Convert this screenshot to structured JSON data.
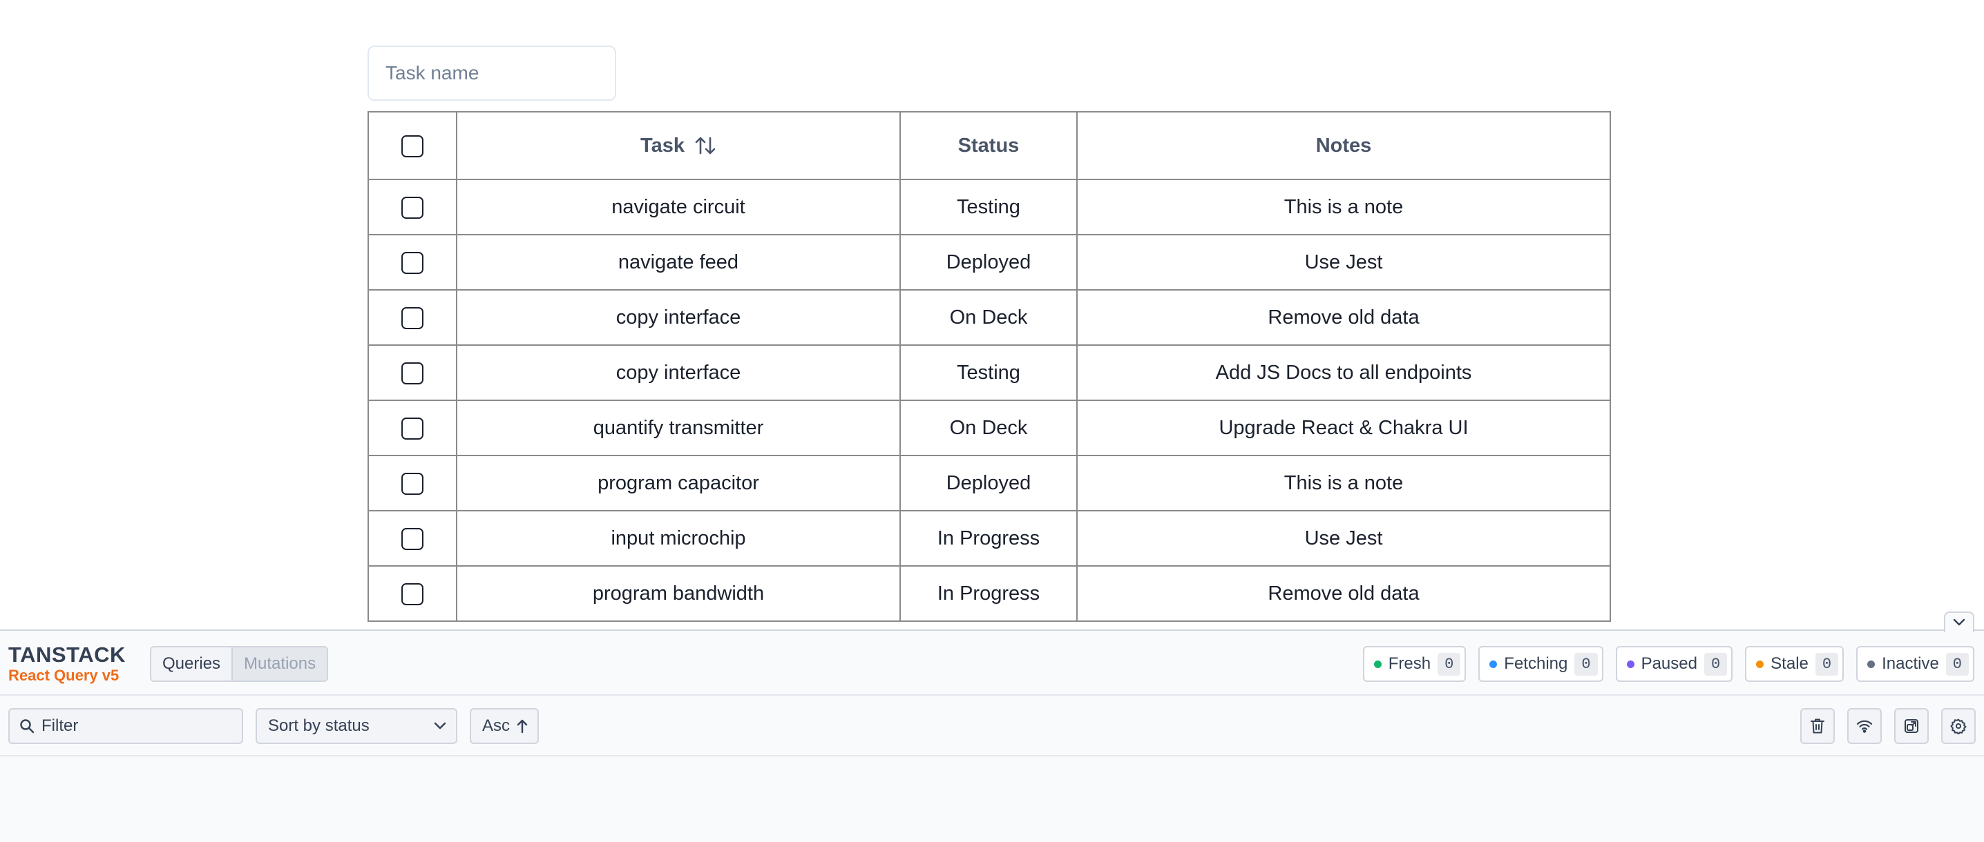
{
  "search": {
    "placeholder": "Task name"
  },
  "table": {
    "columns": [
      "Task",
      "Status",
      "Notes"
    ],
    "rows": [
      {
        "task": "navigate circuit",
        "status": "Testing",
        "notes": "This is a note"
      },
      {
        "task": "navigate feed",
        "status": "Deployed",
        "notes": "Use Jest"
      },
      {
        "task": "copy interface",
        "status": "On Deck",
        "notes": "Remove old data"
      },
      {
        "task": "copy interface",
        "status": "Testing",
        "notes": "Add JS Docs to all endpoints"
      },
      {
        "task": "quantify transmitter",
        "status": "On Deck",
        "notes": "Upgrade React & Chakra UI"
      },
      {
        "task": "program capacitor",
        "status": "Deployed",
        "notes": "This is a note"
      },
      {
        "task": "input microchip",
        "status": "In Progress",
        "notes": "Use Jest"
      },
      {
        "task": "program bandwidth",
        "status": "In Progress",
        "notes": "Remove old data"
      }
    ]
  },
  "devtools": {
    "brand_top": "TANSTACK",
    "brand_bottom": "React Query v5",
    "tabs": {
      "queries": "Queries",
      "mutations": "Mutations"
    },
    "chips": [
      {
        "label": "Fresh",
        "count": "0",
        "color": "#12b76a"
      },
      {
        "label": "Fetching",
        "count": "0",
        "color": "#2e90fa"
      },
      {
        "label": "Paused",
        "count": "0",
        "color": "#7a5af8"
      },
      {
        "label": "Stale",
        "count": "0",
        "color": "#f79009"
      },
      {
        "label": "Inactive",
        "count": "0",
        "color": "#667085"
      }
    ],
    "filter_placeholder": "Filter",
    "sort_label": "Sort by status",
    "order_label": "Asc",
    "icons": [
      "trash-icon",
      "wifi-icon",
      "open-window-icon",
      "settings-icon"
    ]
  }
}
